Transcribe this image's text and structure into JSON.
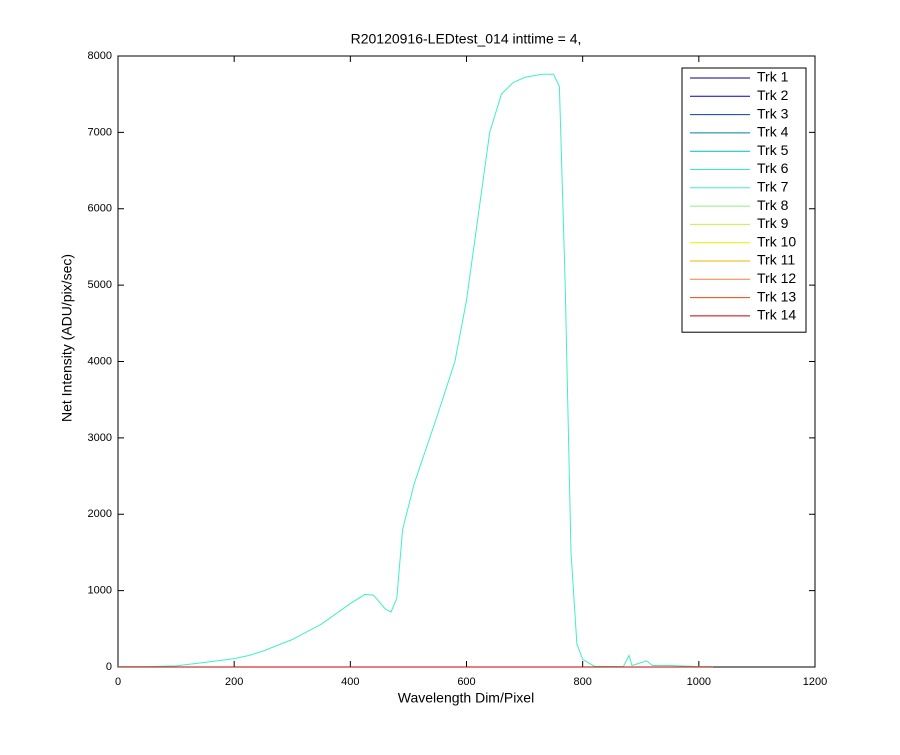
{
  "chart_data": {
    "type": "line",
    "title": "R20120916-LEDtest_014 inttime = 4,",
    "x_label": "Wavelength Dim/Pixel",
    "y_label": "Net Intensity (ADU/pix/sec)",
    "xlim": [
      0,
      1200
    ],
    "xticks": [
      0,
      200,
      400,
      600,
      800,
      1000,
      1200
    ],
    "ylim": [
      0,
      8000
    ],
    "yticks": [
      0,
      1000,
      2000,
      3000,
      4000,
      5000,
      6000,
      7000,
      8000
    ],
    "legend": "upper right",
    "series": [
      {
        "name": "Trk 1",
        "color": "#00008f",
        "x": [
          0,
          1024
        ],
        "values": [
          0,
          0
        ]
      },
      {
        "name": "Trk 2",
        "color": "#0000c8",
        "x": [
          0,
          1024
        ],
        "values": [
          0,
          0
        ]
      },
      {
        "name": "Trk 3",
        "color": "#0040b0",
        "x": [
          0,
          1024
        ],
        "values": [
          0,
          0
        ]
      },
      {
        "name": "Trk 4",
        "color": "#00809a",
        "x": [
          0,
          1024
        ],
        "values": [
          0,
          0
        ]
      },
      {
        "name": "Trk 5",
        "color": "#00b8c8",
        "x": [
          0,
          1024
        ],
        "values": [
          0,
          0
        ]
      },
      {
        "name": "Trk 6",
        "color": "#30e8e0",
        "x": [
          0,
          1024
        ],
        "values": [
          0,
          0
        ]
      },
      {
        "name": "Trk 7",
        "color": "#40f0c0",
        "x": [
          0,
          50,
          100,
          150,
          200,
          225,
          250,
          300,
          350,
          400,
          425,
          440,
          460,
          470,
          480,
          490,
          510,
          550,
          580,
          600,
          620,
          640,
          660,
          680,
          700,
          730,
          750,
          760,
          770,
          780,
          790,
          800,
          820,
          870,
          880,
          885,
          910,
          920,
          950,
          1000,
          1024
        ],
        "values": [
          5,
          5,
          15,
          60,
          110,
          150,
          210,
          360,
          560,
          830,
          950,
          940,
          760,
          720,
          900,
          1800,
          2400,
          3300,
          4000,
          4800,
          5900,
          7000,
          7500,
          7650,
          7720,
          7760,
          7760,
          7600,
          5000,
          1500,
          300,
          100,
          10,
          5,
          150,
          20,
          80,
          20,
          20,
          5,
          5
        ]
      },
      {
        "name": "Trk 8",
        "color": "#90f080",
        "x": [
          0,
          1024
        ],
        "values": [
          0,
          0
        ]
      },
      {
        "name": "Trk 9",
        "color": "#c8f040",
        "x": [
          0,
          1024
        ],
        "values": [
          0,
          0
        ]
      },
      {
        "name": "Trk 10",
        "color": "#f0e800",
        "x": [
          0,
          1024
        ],
        "values": [
          0,
          0
        ]
      },
      {
        "name": "Trk 11",
        "color": "#f0b000",
        "x": [
          0,
          1024
        ],
        "values": [
          0,
          0
        ]
      },
      {
        "name": "Trk 12",
        "color": "#f08040",
        "x": [
          0,
          1024
        ],
        "values": [
          0,
          0
        ]
      },
      {
        "name": "Trk 13",
        "color": "#e84800",
        "x": [
          0,
          1024
        ],
        "values": [
          0,
          0
        ]
      },
      {
        "name": "Trk 14",
        "color": "#c80000",
        "x": [
          0,
          1024
        ],
        "values": [
          0,
          0
        ]
      }
    ]
  }
}
